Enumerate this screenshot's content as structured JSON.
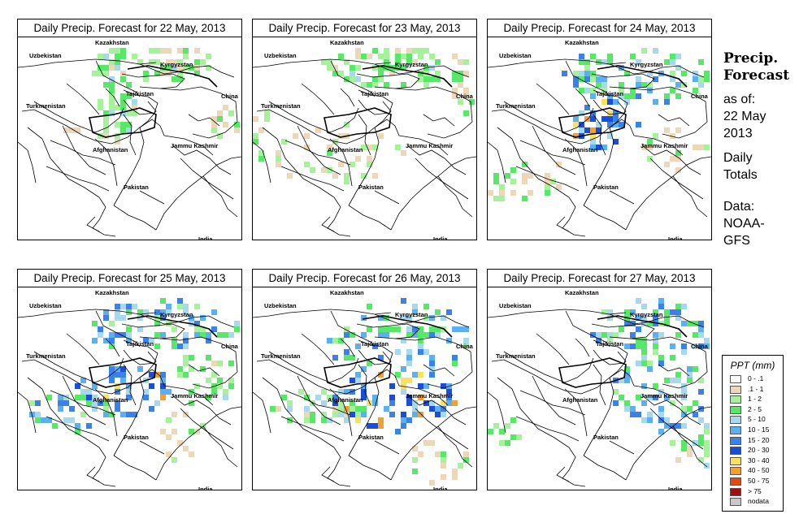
{
  "panels": [
    {
      "title": "Daily Precip. Forecast for  22 May, 2013"
    },
    {
      "title": "Daily Precip. Forecast for  23 May, 2013"
    },
    {
      "title": "Daily Precip. Forecast for  24 May, 2013"
    },
    {
      "title": "Daily Precip. Forecast for  25 May, 2013"
    },
    {
      "title": "Daily Precip. Forecast for  26 May, 2013"
    },
    {
      "title": "Daily Precip. Forecast for  27 May, 2013"
    }
  ],
  "map_labels": {
    "kazakhstan": "Kazakhstan",
    "uzbekistan": "Uzbekistan",
    "kyrgyzstan": "Kyrgyzstan",
    "tajikistan": "Tajikistan",
    "turkmenistan": "Turkmenistan",
    "china": "China",
    "jammu_kashmir": "Jammu Kashmir",
    "afghanistan": "Afghanistan",
    "pakistan": "Pakistan",
    "india": "India"
  },
  "sidebar": {
    "title_line1": "Precip.",
    "title_line2": "Forecast",
    "asof_line1": "as of:",
    "asof_line2": "22 May",
    "asof_line3": "2013",
    "totals_line1": "Daily",
    "totals_line2": "Totals",
    "data_line1": "Data:",
    "data_line2": "NOAA-",
    "data_line3": "GFS"
  },
  "legend": {
    "title": "PPT (mm)",
    "items": [
      {
        "label": "0 - .1",
        "color": "#ffffff"
      },
      {
        "label": ".1 - 1",
        "color": "#ecd8b8"
      },
      {
        "label": "1 - 2",
        "color": "#a6f29a"
      },
      {
        "label": "2 - 5",
        "color": "#56e866"
      },
      {
        "label": "5 - 10",
        "color": "#a8d8ec"
      },
      {
        "label": "10 - 15",
        "color": "#5ab0f0"
      },
      {
        "label": "15 - 20",
        "color": "#3a82ea"
      },
      {
        "label": "20 - 30",
        "color": "#1a4ed8"
      },
      {
        "label": "30 - 40",
        "color": "#f8e060"
      },
      {
        "label": "40 - 50",
        "color": "#f4a030"
      },
      {
        "label": "50 - 75",
        "color": "#e04a10"
      },
      {
        "label": "> 75",
        "color": "#a01010"
      },
      {
        "label": "nodata",
        "color": "#c8c8c8"
      }
    ]
  }
}
